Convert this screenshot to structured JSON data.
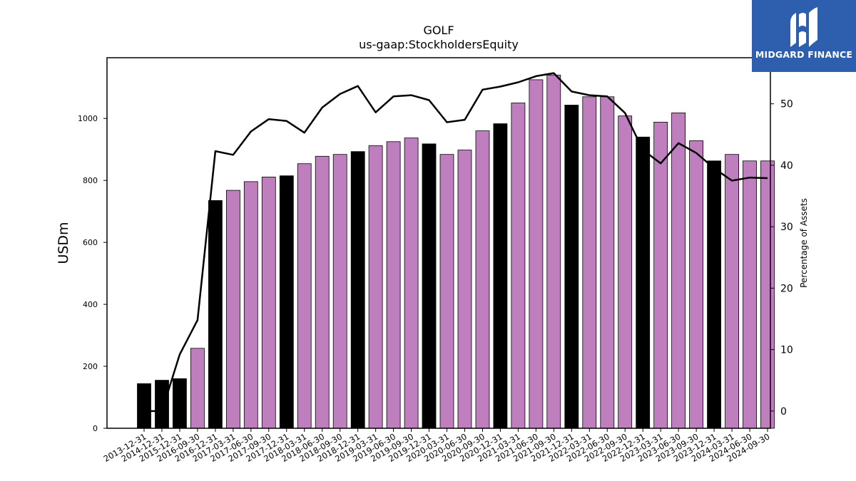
{
  "chart_data": {
    "type": "bar",
    "title": "GOLF",
    "subtitle": "us-gaap:StockholdersEquity",
    "ylabel": "USDm",
    "y2label": "Percentage of Assets",
    "ylim": [
      0,
      1196
    ],
    "y2lim": [
      -2.8,
      57.5
    ],
    "yticks": [
      0,
      200,
      400,
      600,
      800,
      1000
    ],
    "y2ticks": [
      0,
      10,
      20,
      30,
      40,
      50
    ],
    "colors": {
      "annual": "#000000",
      "quarterly": "#bf7fbf",
      "line": "#000000"
    },
    "categories": [
      "2013-12-31",
      "2014-12-31",
      "2015-12-31",
      "2016-09-30",
      "2016-12-31",
      "2017-03-31",
      "2017-06-30",
      "2017-09-30",
      "2017-12-31",
      "2018-03-31",
      "2018-06-30",
      "2018-09-30",
      "2018-12-31",
      "2019-03-31",
      "2019-06-30",
      "2019-09-30",
      "2019-12-31",
      "2020-03-31",
      "2020-06-30",
      "2020-09-30",
      "2020-12-31",
      "2021-03-31",
      "2021-06-30",
      "2021-09-30",
      "2021-12-31",
      "2022-03-31",
      "2022-06-30",
      "2022-09-30",
      "2022-12-31",
      "2023-03-31",
      "2023-06-30",
      "2023-09-30",
      "2023-12-31",
      "2024-03-31",
      "2024-06-30",
      "2024-09-30"
    ],
    "series": [
      {
        "name": "",
        "type": "bar",
        "values": [
          144,
          155,
          160,
          258,
          735,
          768,
          796,
          811,
          815,
          854,
          878,
          884,
          893,
          912,
          925,
          937,
          918,
          884,
          898,
          960,
          983,
          1050,
          1125,
          1140,
          1043,
          1070,
          1070,
          1008,
          940,
          988,
          1018,
          928,
          863,
          884,
          863,
          863
        ],
        "annual": [
          true,
          true,
          true,
          false,
          true,
          false,
          false,
          false,
          true,
          false,
          false,
          false,
          true,
          false,
          false,
          false,
          true,
          false,
          false,
          false,
          true,
          false,
          false,
          false,
          true,
          false,
          false,
          false,
          true,
          false,
          false,
          false,
          true,
          false,
          false,
          false
        ]
      },
      {
        "name": "",
        "type": "line",
        "axis": "right",
        "values": [
          0.0,
          0.0,
          9.2,
          14.8,
          42.3,
          41.7,
          45.5,
          47.5,
          47.2,
          45.3,
          49.4,
          51.6,
          52.9,
          48.6,
          51.2,
          51.4,
          50.6,
          47.0,
          47.4,
          52.3,
          52.8,
          53.5,
          54.5,
          55.0,
          52.0,
          51.4,
          51.2,
          48.5,
          42.5,
          40.3,
          43.6,
          42.0,
          39.5,
          37.5,
          38.0,
          37.9
        ]
      }
    ]
  },
  "logo": {
    "text": "MIDGARD FINANCE",
    "icon": "midgard-m-logo-icon"
  }
}
